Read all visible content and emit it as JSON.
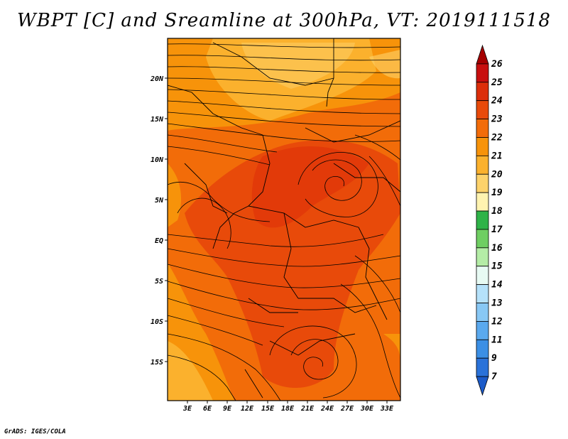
{
  "title": "WBPT [C] and Sreamline at 300hPa, VT: 2019111518",
  "credit": "GrADS: IGES/COLA",
  "map": {
    "field": "WBPT",
    "units": "C",
    "level": "300hPa",
    "valid_time": "2019111518",
    "lon_range_deg": [
      0,
      35
    ],
    "lat_range_deg": [
      -20,
      24
    ],
    "lat_ticks": [
      "20N",
      "15N",
      "10N",
      "5N",
      "EQ",
      "5S",
      "10S",
      "15S"
    ],
    "lon_ticks": [
      "3E",
      "6E",
      "9E",
      "12E",
      "15E",
      "18E",
      "21E",
      "24E",
      "27E",
      "30E",
      "33E"
    ],
    "regions": [
      {
        "name": "northern-warm-band",
        "value_range": "21-22"
      },
      {
        "name": "sahara-cool-patch",
        "value_range": "20-21"
      },
      {
        "name": "central-africa-core",
        "value_range": "23-24"
      },
      {
        "name": "southern-west-margin",
        "value_range": "21-22"
      }
    ]
  },
  "colorbar": {
    "labels": [
      "26",
      "25",
      "24",
      "23",
      "22",
      "21",
      "20",
      "19",
      "18",
      "17",
      "16",
      "15",
      "14",
      "13",
      "12",
      "11",
      "9",
      "7"
    ],
    "colors": [
      "#a50000",
      "#c80f0f",
      "#dc2e0a",
      "#e84a0a",
      "#f26c09",
      "#f7930a",
      "#fbb12d",
      "#fdd26b",
      "#fff3b0",
      "#2fb348",
      "#6fce62",
      "#b4eca6",
      "#e7faf3",
      "#b5e1fa",
      "#88c8f5",
      "#5aa9ee",
      "#3b8fe5",
      "#2a72d9",
      "#1c5bc9"
    ]
  }
}
